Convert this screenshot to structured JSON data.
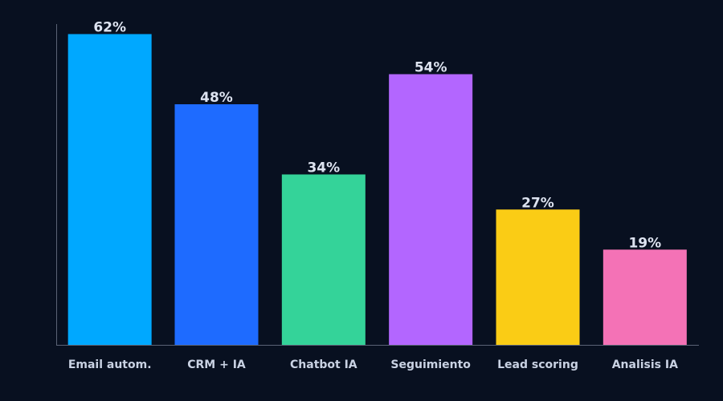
{
  "chart_data": {
    "type": "bar",
    "categories": [
      "Email autom.",
      "CRM + IA",
      "Chatbot IA",
      "Seguimiento",
      "Lead scoring",
      "Analisis IA"
    ],
    "values": [
      62,
      48,
      34,
      54,
      27,
      19
    ],
    "value_labels": [
      "62%",
      "48%",
      "34%",
      "54%",
      "27%",
      "19%"
    ],
    "unit": "%",
    "colors": [
      "#00a8ff",
      "#1e6bff",
      "#34d399",
      "#b366ff",
      "#facc15",
      "#f472b6"
    ],
    "ylim": [
      0,
      64
    ],
    "title": "",
    "xlabel": "",
    "ylabel": "",
    "grid": false,
    "legend": "none",
    "background": "#081020"
  }
}
